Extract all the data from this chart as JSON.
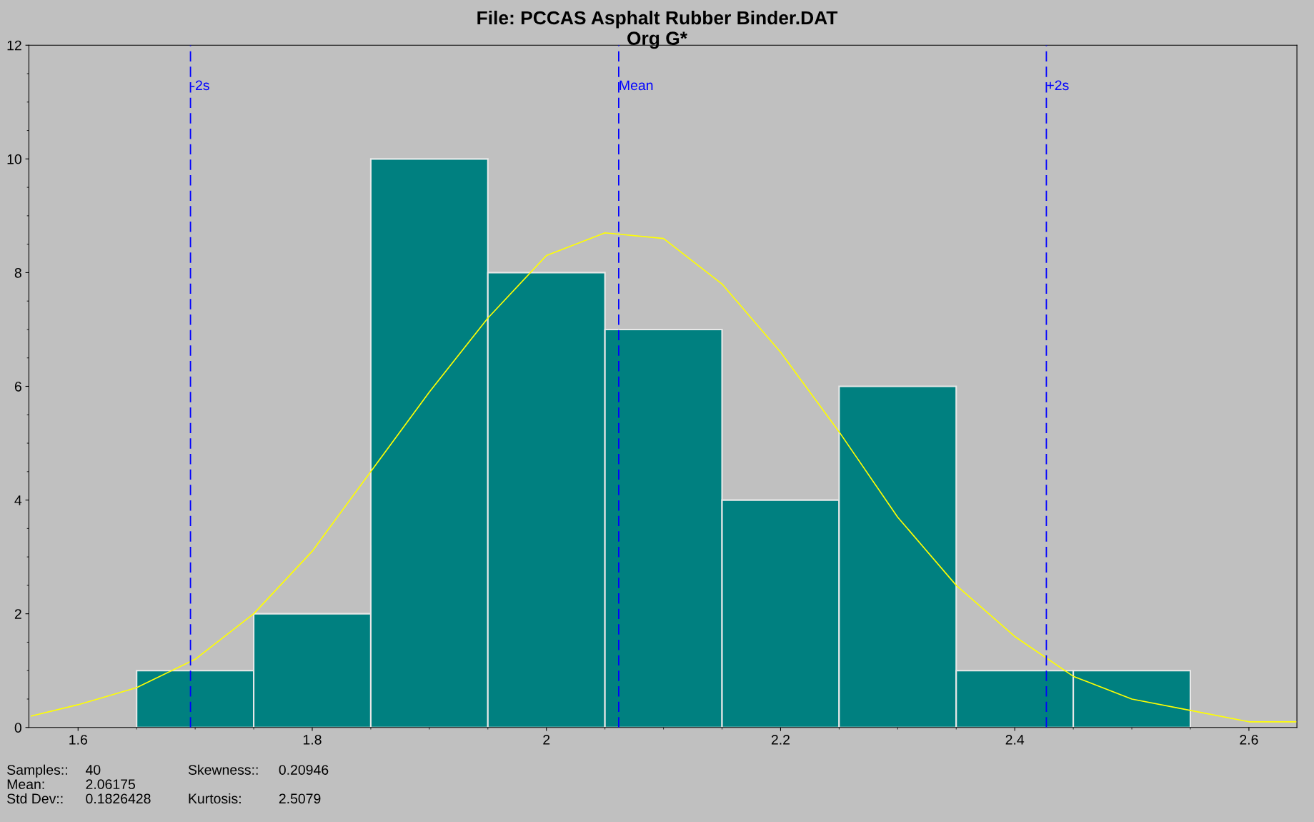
{
  "chart_data": {
    "type": "histogram",
    "title": "File: PCCAS Asphalt Rubber Binder.DAT",
    "subtitle": "Org G*",
    "bins": [
      1.65,
      1.75,
      1.85,
      1.95,
      2.05,
      2.15,
      2.25,
      2.35,
      2.45,
      2.55
    ],
    "values": [
      1,
      2,
      10,
      8,
      7,
      4,
      6,
      1,
      1
    ],
    "color": "#008080",
    "series": [
      {
        "type": "line",
        "color": "#ffff00",
        "x": [
          1.56,
          1.6,
          1.65,
          1.7,
          1.75,
          1.8,
          1.85,
          1.9,
          1.95,
          2.0,
          2.05,
          2.1,
          2.15,
          2.2,
          2.25,
          2.3,
          2.35,
          2.4,
          2.45,
          2.5,
          2.55,
          2.6,
          2.64
        ],
        "values": [
          0.2,
          0.4,
          0.7,
          1.2,
          2.0,
          3.1,
          4.5,
          5.9,
          7.2,
          8.3,
          8.7,
          8.6,
          7.8,
          6.6,
          5.2,
          3.7,
          2.5,
          1.6,
          0.9,
          0.5,
          0.3,
          0.1,
          0.1
        ]
      }
    ],
    "ref_lines": [
      {
        "axis": "x",
        "value": 1.696,
        "label": "-2s",
        "color": "#0000ff",
        "line_style": "dashed"
      },
      {
        "axis": "x",
        "value": 2.06175,
        "label": "Mean",
        "color": "#0000ff",
        "line_style": "dashed"
      },
      {
        "axis": "x",
        "value": 2.427,
        "label": "+2s",
        "color": "#0000ff",
        "line_style": "dashed"
      }
    ],
    "xlim": [
      1.558,
      2.641
    ],
    "xticks": [
      1.6,
      1.8,
      2,
      2.2,
      2.4,
      2.6
    ],
    "ylim": [
      0,
      12
    ],
    "yticks": [
      0,
      2,
      4,
      6,
      8,
      10,
      12
    ],
    "grid": false,
    "legend": false,
    "annotations": [
      "Samples::",
      "40",
      "Mean:",
      "2.06175",
      "Std Dev::",
      "0.1826428",
      "Skewness::",
      "0.20946",
      "Kurtosis:",
      "2.5079"
    ]
  }
}
